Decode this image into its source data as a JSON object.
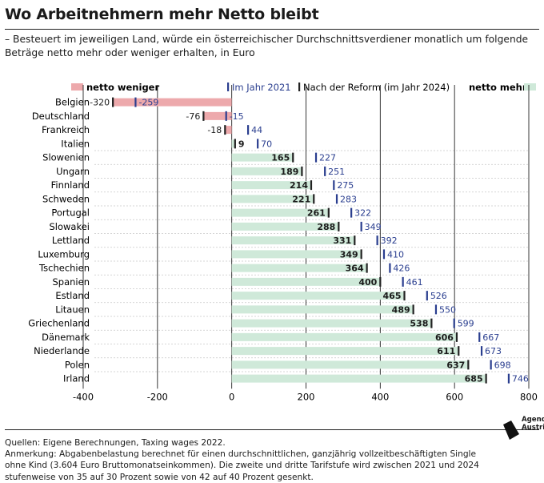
{
  "title": "Wo Arbeitnehmern mehr Netto bleibt",
  "subtitle": "– Besteuert im jeweiligen Land, würde ein österreichischer Durchschnittsverdiener monatlich um folgende Beträge netto mehr oder weniger erhalten, in Euro",
  "legend": {
    "less": "netto weniger",
    "y2021": "Im Jahr 2021",
    "reform": "Nach der Reform (im Jahr 2024)",
    "more": "netto mehr"
  },
  "colors": {
    "positive_bar": "#cfe9d9",
    "negative_bar": "#eda9ac",
    "marker_2021": "#2a3e8f",
    "marker_reform": "#222222",
    "gridline": "#222222",
    "row_separator": "#c8c8c8"
  },
  "chart_data": {
    "type": "bar",
    "orientation": "horizontal",
    "categories": [
      "Belgien",
      "Deutschland",
      "Frankreich",
      "Italien",
      "Slowenien",
      "Ungarn",
      "Finnland",
      "Schweden",
      "Portugal",
      "Slowakei",
      "Lettland",
      "Luxemburg",
      "Tschechien",
      "Spanien",
      "Estland",
      "Litauen",
      "Griechenland",
      "Dänemark",
      "Niederlande",
      "Polen",
      "Irland"
    ],
    "series": [
      {
        "name": "Nach der Reform (im Jahr 2024)",
        "values": [
          -320,
          -76,
          -18,
          9,
          165,
          189,
          214,
          221,
          261,
          288,
          331,
          349,
          364,
          400,
          465,
          489,
          538,
          606,
          611,
          637,
          685
        ]
      },
      {
        "name": "Im Jahr 2021",
        "values": [
          -259,
          -15,
          44,
          70,
          227,
          251,
          275,
          283,
          322,
          349,
          392,
          410,
          426,
          461,
          526,
          550,
          599,
          667,
          673,
          698,
          746
        ]
      }
    ],
    "xlim": [
      -400,
      800
    ],
    "xticks": [
      -400,
      -200,
      0,
      200,
      400,
      600,
      800
    ],
    "xtick_labels": [
      "-400",
      "-200",
      "0",
      "200",
      "400",
      "600",
      "800"
    ],
    "grid": true,
    "legend_position": "top"
  },
  "footnote": {
    "source": "Quellen: Eigene Berechnungen, Taxing wages 2022.",
    "note": "Anmerkung: Abgabenbelastung berechnet für einen durchschnittlichen, ganzjährig vollzeitbeschäftigten Single ohne Kind (3.604 Euro Bruttomonatseinkommen). Die zweite und dritte Tarifstufe wird zwischen 2021 und 2024 stufenweise von 35 auf 30 Prozent sowie von 42 auf 40 Prozent gesenkt."
  },
  "logo": {
    "line1": "Agenda",
    "line2": "Austria"
  }
}
